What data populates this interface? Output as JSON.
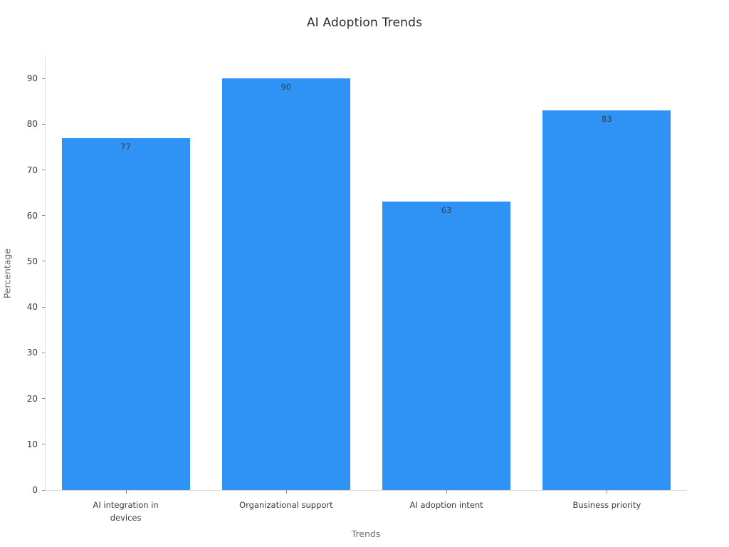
{
  "title": "AI Adoption Trends",
  "chart_data": {
    "type": "bar",
    "title": "AI Adoption Trends",
    "categories": [
      "AI integration in devices",
      "Organizational support",
      "AI adoption intent",
      "Business priority"
    ],
    "category_label_lines": [
      [
        "AI integration in",
        "devices"
      ],
      [
        "Organizational support"
      ],
      [
        "AI adoption intent"
      ],
      [
        "Business priority"
      ]
    ],
    "values": [
      77,
      90,
      63,
      83
    ],
    "value_labels": [
      "77",
      "90",
      "63",
      "83"
    ],
    "xlabel": "Trends",
    "ylabel": "Percentage",
    "yticks": [
      0,
      10,
      20,
      30,
      40,
      50,
      60,
      70,
      80,
      90
    ],
    "ylim": [
      0,
      95
    ],
    "grid": false,
    "legend": "none",
    "bar_width_fraction": 0.8,
    "colors": {
      "bar": "#2e93f5",
      "axis_line": "#d9d9d9",
      "tick": "#8a8a8a",
      "tick_label": "#3c3c3c",
      "axis_title": "#6e6e6e",
      "value_label": "#35424d",
      "title": "#2b2b2b",
      "background": "#ffffff"
    }
  }
}
